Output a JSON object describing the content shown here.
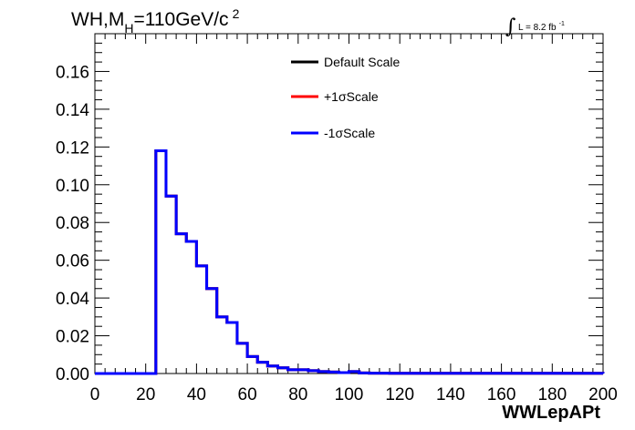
{
  "title": {
    "text_main": "WH,M",
    "text_sub": "H",
    "text_rest": "=110GeV/c",
    "text_sup": "2"
  },
  "lumi": {
    "integral": "∫",
    "text": "L = 8.2 fb",
    "sup": "-1"
  },
  "chart_data": {
    "type": "histogram",
    "xlabel": "WWLepAPt",
    "ylabel": "",
    "xlim": [
      0,
      200
    ],
    "ylim": [
      0,
      0.18
    ],
    "xticks": [
      "0",
      "20",
      "40",
      "60",
      "80",
      "100",
      "120",
      "140",
      "160",
      "180",
      "200"
    ],
    "yticks": [
      "0.00",
      "0.02",
      "0.04",
      "0.06",
      "0.08",
      "0.10",
      "0.12",
      "0.14",
      "0.16"
    ],
    "bin_width": 4,
    "bin_edges_start": 0,
    "legend": [
      {
        "name": "Default Scale",
        "color": "#000000"
      },
      {
        "name": "+1σScale",
        "color": "#ff0000"
      },
      {
        "name": "-1σScale",
        "color": "#0000ff"
      }
    ],
    "legend_position": "top-right",
    "series": [
      {
        "name": "-1σScale",
        "color": "#0000ff",
        "values": [
          0,
          0,
          0,
          0,
          0,
          0.0,
          0.118,
          0.094,
          0.074,
          0.07,
          0.057,
          0.045,
          0.03,
          0.027,
          0.016,
          0.009,
          0.006,
          0.004,
          0.003,
          0.002,
          0.002,
          0.0015,
          0.001,
          0.0008,
          0.0005,
          0.001,
          0.0003,
          0.0002,
          0.0002,
          0.0001,
          0.0001,
          0.0001,
          0.0001,
          0.0001,
          0.0001,
          0.0001,
          0.0001,
          0.0001,
          0.0001,
          0.0001,
          0.0001,
          0.0001,
          0.0001,
          0.0001,
          0.0001,
          0.0001,
          0.0001,
          0.0001,
          0.0001,
          0.0001
        ]
      }
    ]
  }
}
